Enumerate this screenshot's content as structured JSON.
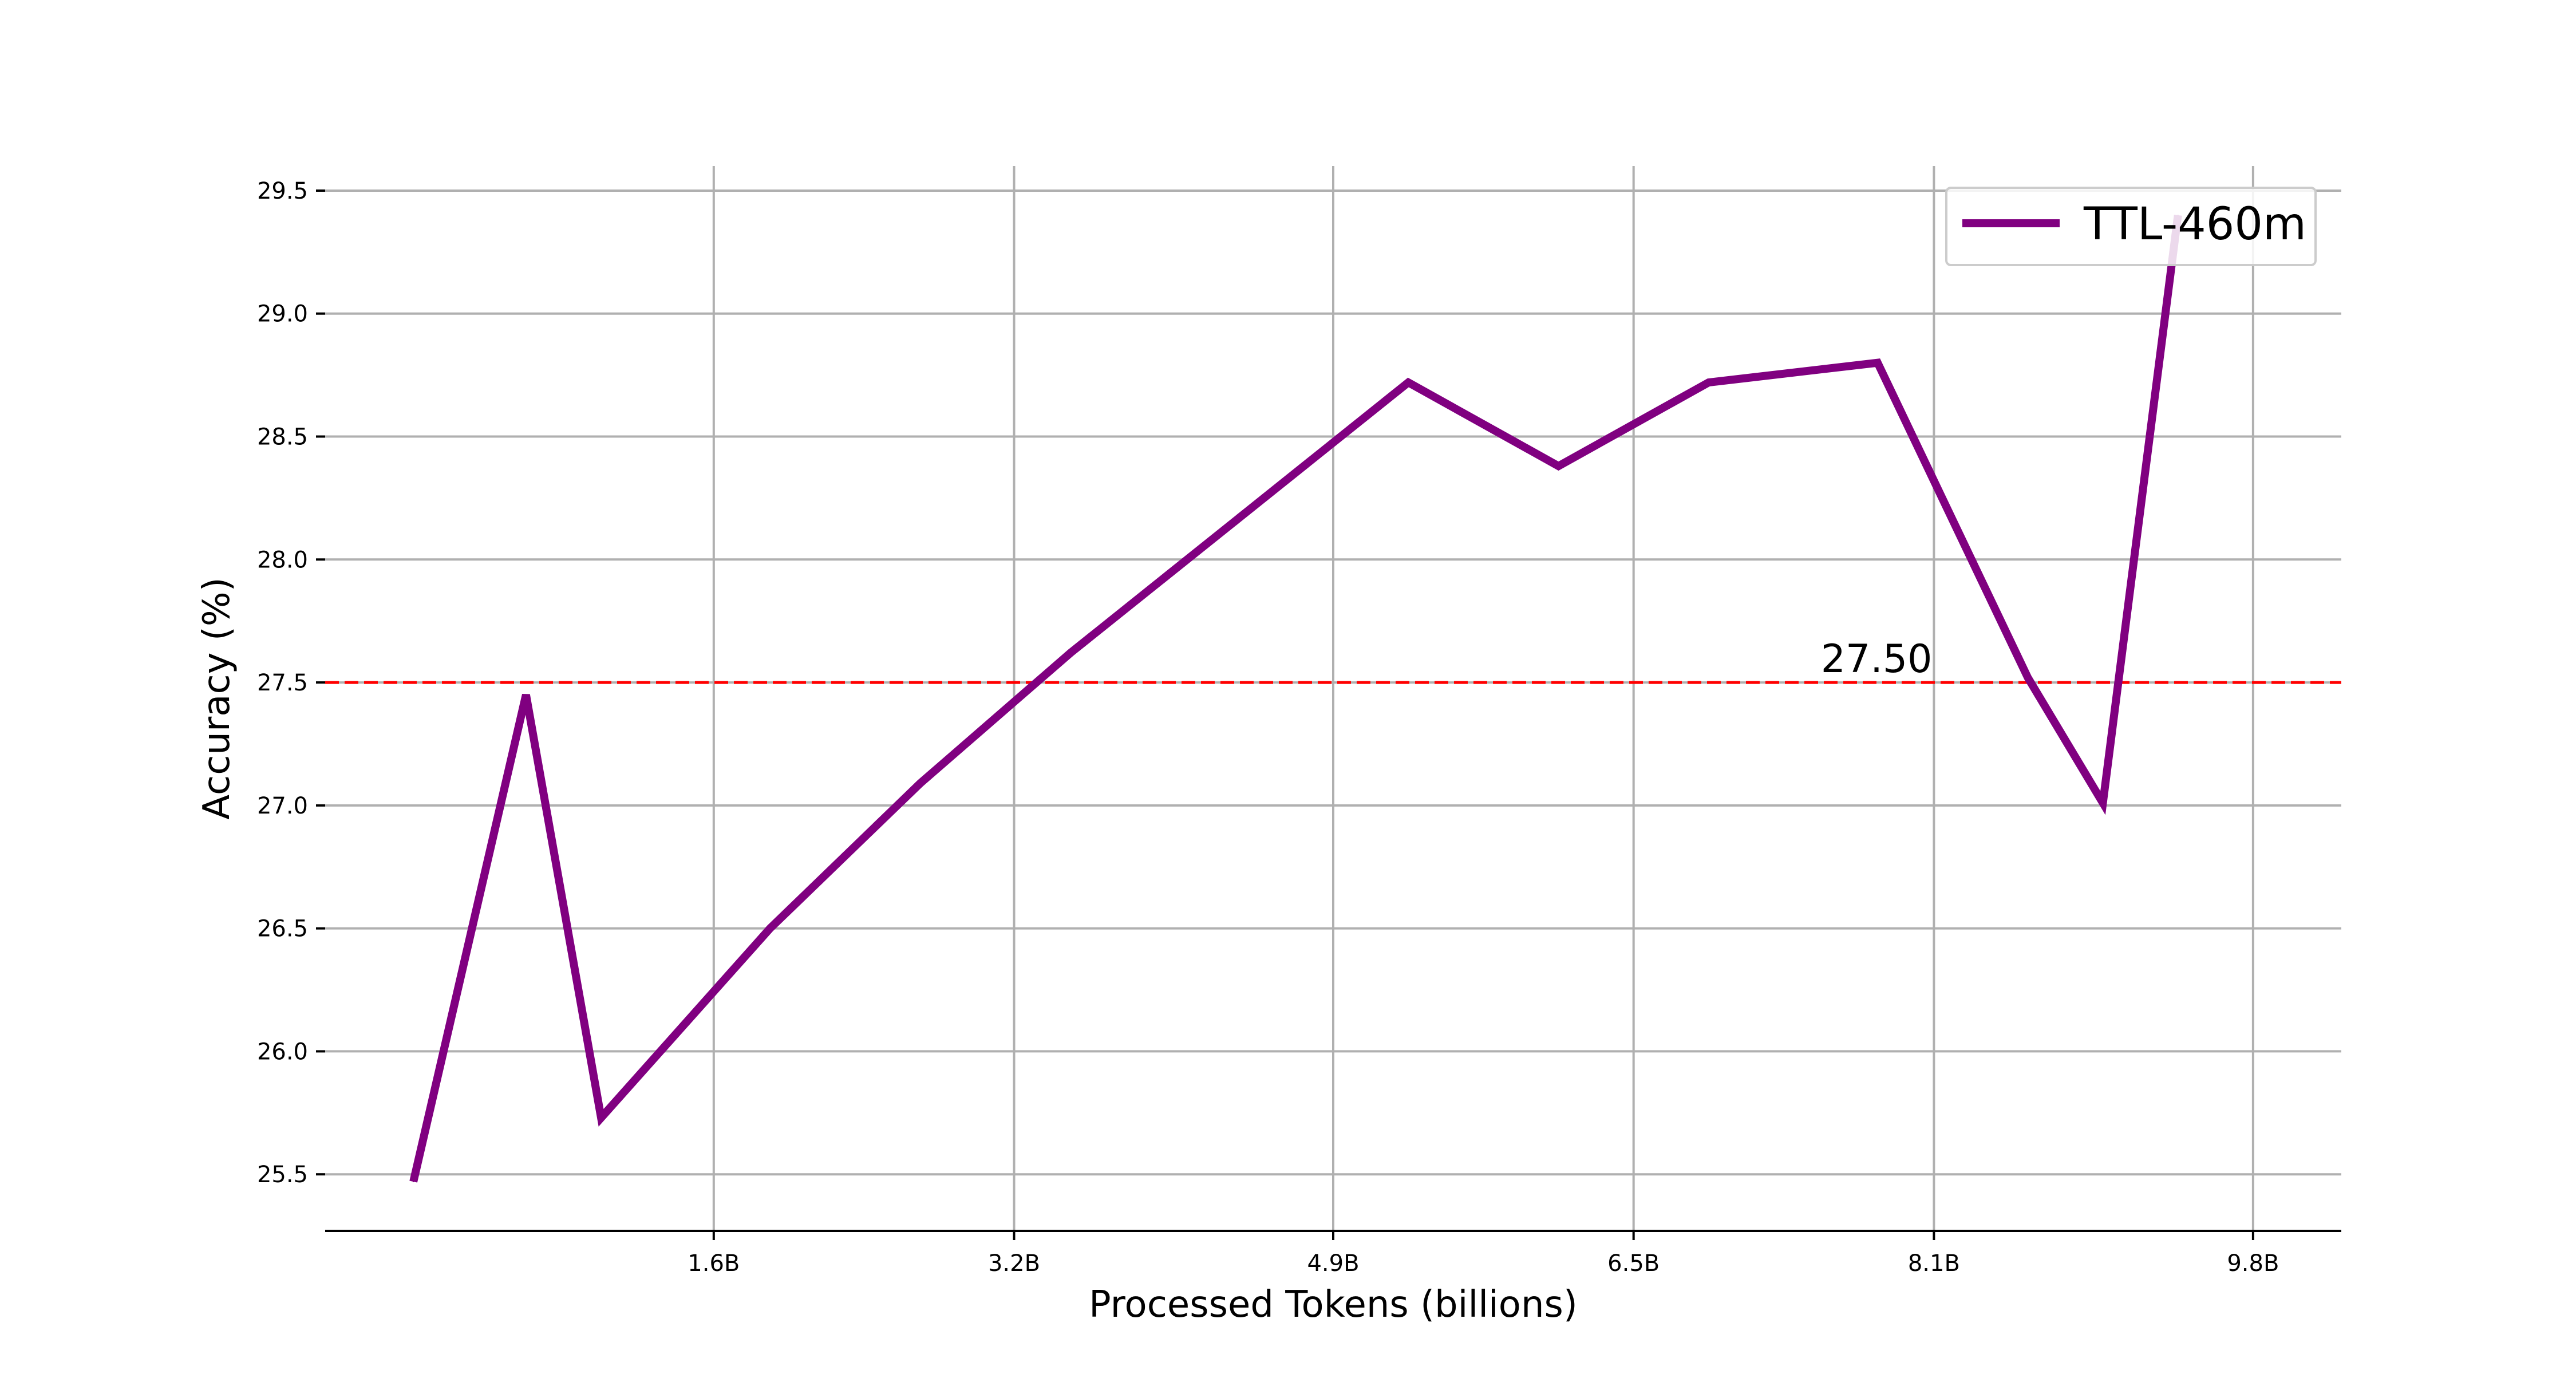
{
  "chart_data": {
    "type": "line",
    "x": [
      0.0,
      0.6,
      1.0,
      1.9,
      2.7,
      3.5,
      4.4,
      5.3,
      6.1,
      6.9,
      7.8,
      8.6,
      9.0,
      9.4
    ],
    "series": [
      {
        "name": "TTL-460m",
        "color": "#800080",
        "values": [
          25.47,
          27.45,
          25.73,
          26.5,
          27.09,
          27.62,
          28.17,
          28.72,
          28.38,
          28.72,
          28.8,
          27.52,
          27.01,
          29.4
        ]
      }
    ],
    "xticks": [
      1.6,
      3.2,
      4.9,
      6.5,
      8.1,
      9.8
    ],
    "xtick_labels": [
      "1.6B",
      "3.2B",
      "4.9B",
      "6.5B",
      "8.1B",
      "9.8B"
    ],
    "yticks": [
      25.5,
      26.0,
      26.5,
      27.0,
      27.5,
      28.0,
      28.5,
      29.0,
      29.5
    ],
    "ytick_labels": [
      "25.5",
      "26.0",
      "26.5",
      "27.0",
      "27.5",
      "28.0",
      "28.5",
      "29.0",
      "29.5"
    ],
    "xlim": [
      -0.47,
      10.27
    ],
    "ylim": [
      25.27,
      29.6
    ],
    "xlabel": "Processed Tokens (billions)",
    "ylabel": "Accuracy (%)",
    "title": "",
    "grid": true,
    "legend": "top-right",
    "reference_line": {
      "y": 27.5,
      "label": "27.50",
      "color": "#ff0000",
      "style": "dashed"
    }
  }
}
